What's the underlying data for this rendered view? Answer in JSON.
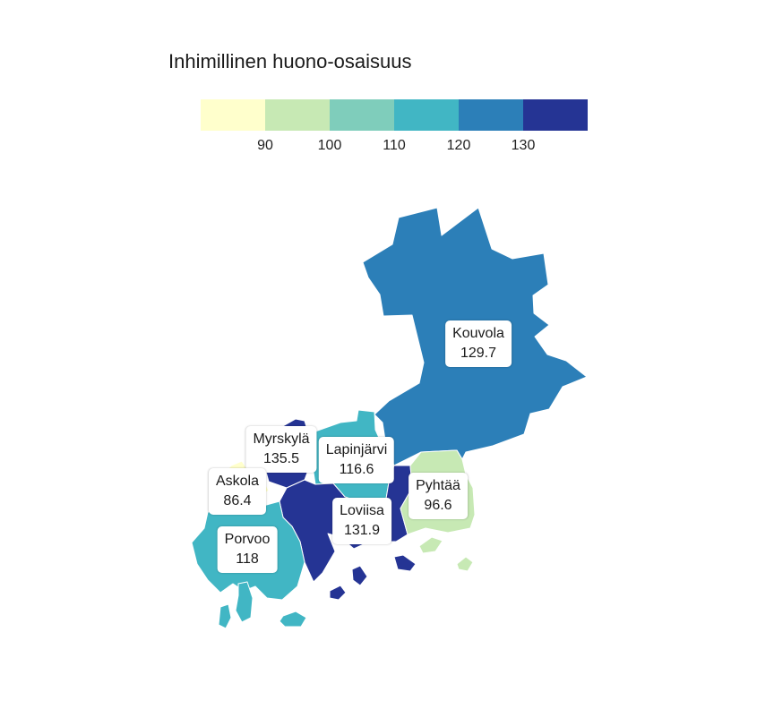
{
  "legend": {
    "title": "Inhimillinen huono-osaisuus",
    "colors": [
      "#ffffcc",
      "#c7e9b4",
      "#7fcdbb",
      "#41b6c4",
      "#2c7fb8",
      "#253494"
    ],
    "ticks": [
      "90",
      "100",
      "110",
      "120",
      "130"
    ]
  },
  "municipalities": [
    {
      "name": "Kouvola",
      "value": "129.7",
      "color": "#2c7fb8"
    },
    {
      "name": "Myrskylä",
      "value": "135.5",
      "color": "#253494"
    },
    {
      "name": "Lapinjärvi",
      "value": "116.6",
      "color": "#41b6c4"
    },
    {
      "name": "Askola",
      "value": "86.4",
      "color": "#ffffcc"
    },
    {
      "name": "Pyhtää",
      "value": "96.6",
      "color": "#c7e9b4"
    },
    {
      "name": "Loviisa",
      "value": "131.9",
      "color": "#253494"
    },
    {
      "name": "Porvoo",
      "value": "118",
      "color": "#41b6c4"
    }
  ]
}
